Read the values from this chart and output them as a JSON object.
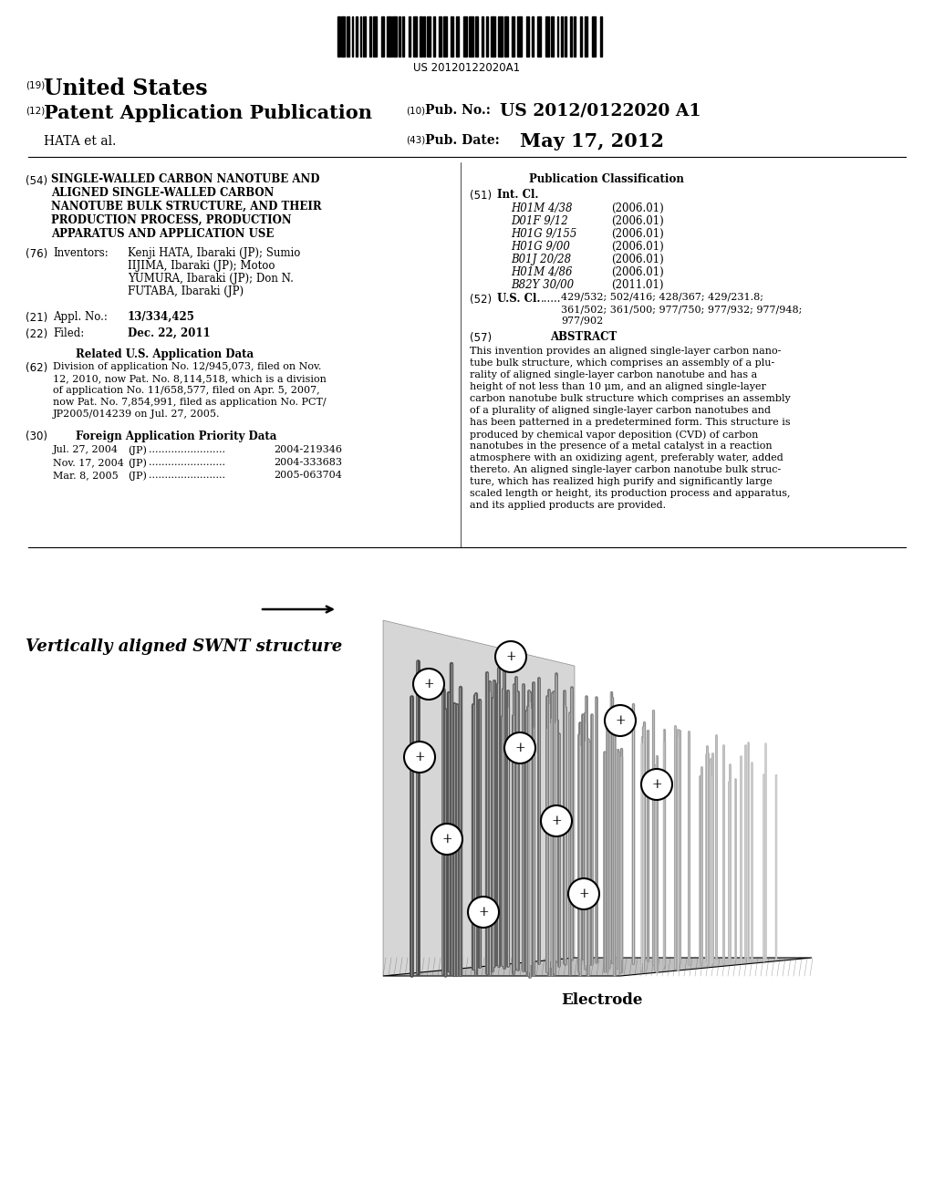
{
  "background_color": "#ffffff",
  "barcode_text": "US 20120122020A1",
  "pub_number_label": "(19)",
  "pub_number_text": "United States",
  "pub_type_label": "(12)",
  "pub_type_text": "Patent Application Publication",
  "pub_no_label": "(10)",
  "pub_no_text": "Pub. No.:",
  "pub_no_value": "US 2012/0122020 A1",
  "author": "HATA et al.",
  "pub_date_label": "(43)",
  "pub_date_text": "Pub. Date:",
  "pub_date_value": "May 17, 2012",
  "title_label": "(54)",
  "title_lines": [
    "SINGLE-WALLED CARBON NANOTUBE AND",
    "ALIGNED SINGLE-WALLED CARBON",
    "NANOTUBE BULK STRUCTURE, AND THEIR",
    "PRODUCTION PROCESS, PRODUCTION",
    "APPARATUS AND APPLICATION USE"
  ],
  "inventors_label": "(76)",
  "inventors_heading": "Inventors:",
  "inventors_lines": [
    "Kenji HATA, Ibaraki (JP); Sumio",
    "IIJIMA, Ibaraki (JP); Motoo",
    "YUMURA, Ibaraki (JP); Don N.",
    "FUTABA, Ibaraki (JP)"
  ],
  "appl_label": "(21)",
  "appl_heading": "Appl. No.:",
  "appl_value": "13/334,425",
  "filed_label": "(22)",
  "filed_heading": "Filed:",
  "filed_value": "Dec. 22, 2011",
  "related_heading": "Related U.S. Application Data",
  "related_label": "(62)",
  "related_lines": [
    "Division of application No. 12/945,073, filed on Nov.",
    "12, 2010, now Pat. No. 8,114,518, which is a division",
    "of application No. 11/658,577, filed on Apr. 5, 2007,",
    "now Pat. No. 7,854,991, filed as application No. PCT/",
    "JP2005/014239 on Jul. 27, 2005."
  ],
  "foreign_heading": "Foreign Application Priority Data",
  "foreign_label": "(30)",
  "foreign_data": [
    [
      "Jul. 27, 2004",
      "(JP)",
      "2004-219346"
    ],
    [
      "Nov. 17, 2004",
      "(JP)",
      "2004-333683"
    ],
    [
      "Mar. 8, 2005",
      "(JP)",
      "2005-063704"
    ]
  ],
  "pub_class_heading": "Publication Classification",
  "int_cl_label": "(51)",
  "int_cl_heading": "Int. Cl.",
  "int_cl_entries": [
    [
      "H01M 4/38",
      "(2006.01)"
    ],
    [
      "D01F 9/12",
      "(2006.01)"
    ],
    [
      "H01G 9/155",
      "(2006.01)"
    ],
    [
      "H01G 9/00",
      "(2006.01)"
    ],
    [
      "B01J 20/28",
      "(2006.01)"
    ],
    [
      "H01M 4/86",
      "(2006.01)"
    ],
    [
      "B82Y 30/00",
      "(2011.01)"
    ]
  ],
  "us_cl_label": "(52)",
  "us_cl_heading": "U.S. Cl.",
  "us_cl_lines": [
    "429/532; 502/416; 428/367; 429/231.8;",
    "361/502; 361/500; 977/750; 977/932; 977/948;",
    "977/902"
  ],
  "abstract_label": "(57)",
  "abstract_heading": "ABSTRACT",
  "abstract_lines": [
    "This invention provides an aligned single-layer carbon nano-",
    "tube bulk structure, which comprises an assembly of a plu-",
    "rality of aligned single-layer carbon nanotube and has a",
    "height of not less than 10 μm, and an aligned single-layer",
    "carbon nanotube bulk structure which comprises an assembly",
    "of a plurality of aligned single-layer carbon nanotubes and",
    "has been patterned in a predetermined form. This structure is",
    "produced by chemical vapor deposition (CVD) of carbon",
    "nanotubes in the presence of a metal catalyst in a reaction",
    "atmosphere with an oxidizing agent, preferably water, added",
    "thereto. An aligned single-layer carbon nanotube bulk struc-",
    "ture, which has realized high purify and significantly large",
    "scaled length or height, its production process and apparatus,",
    "and its applied products are provided."
  ],
  "diagram_label": "Vertically aligned SWNT structure",
  "electrode_label": "Electrode"
}
